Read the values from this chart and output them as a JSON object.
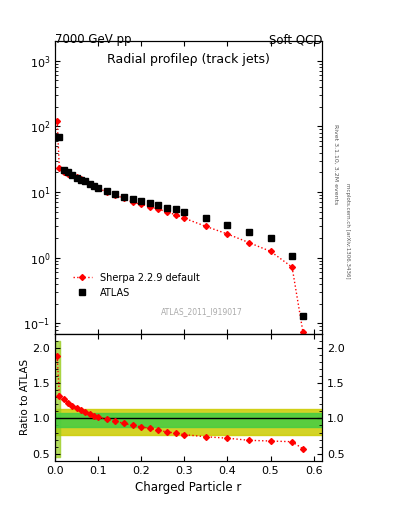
{
  "title_left": "7000 GeV pp",
  "title_right": "Soft QCD",
  "main_title": "Radial profileρ (track jets)",
  "watermark": "ATLAS_2011_I919017",
  "right_label_top": "Rivet 3.1.10, 3.2M events",
  "right_label_bottom": "mcplots.cern.ch [arXiv:1306.3436]",
  "xlabel": "Charged Particle r",
  "ylabel_ratio": "Ratio to ATLAS",
  "atlas_x": [
    0.01,
    0.02,
    0.03,
    0.04,
    0.05,
    0.06,
    0.07,
    0.08,
    0.09,
    0.1,
    0.12,
    0.14,
    0.16,
    0.18,
    0.2,
    0.22,
    0.24,
    0.26,
    0.28,
    0.3,
    0.35,
    0.4,
    0.45,
    0.5,
    0.55,
    0.575
  ],
  "atlas_y": [
    70,
    22,
    20,
    18,
    16.5,
    15.5,
    14.5,
    13.5,
    12.5,
    11.5,
    10.5,
    9.5,
    8.5,
    7.8,
    7.2,
    6.8,
    6.3,
    5.8,
    5.5,
    5.0,
    4.0,
    3.1,
    2.5,
    2.0,
    1.05,
    0.13
  ],
  "sherpa_x": [
    0.005,
    0.01,
    0.02,
    0.03,
    0.04,
    0.05,
    0.06,
    0.07,
    0.08,
    0.09,
    0.1,
    0.12,
    0.14,
    0.16,
    0.18,
    0.2,
    0.22,
    0.24,
    0.26,
    0.28,
    0.3,
    0.35,
    0.4,
    0.45,
    0.5,
    0.55,
    0.575
  ],
  "sherpa_y": [
    120,
    23,
    20,
    19,
    18,
    17,
    16,
    15,
    13.5,
    12.5,
    11.5,
    10,
    9,
    8,
    7,
    6.5,
    6,
    5.5,
    5,
    4.5,
    4,
    3.0,
    2.3,
    1.7,
    1.25,
    0.72,
    0.075
  ],
  "ratio_x": [
    0.005,
    0.01,
    0.02,
    0.03,
    0.04,
    0.05,
    0.06,
    0.07,
    0.08,
    0.09,
    0.1,
    0.12,
    0.14,
    0.16,
    0.18,
    0.2,
    0.22,
    0.24,
    0.26,
    0.28,
    0.3,
    0.35,
    0.4,
    0.45,
    0.5,
    0.55,
    0.575
  ],
  "ratio_y": [
    1.88,
    1.32,
    1.27,
    1.22,
    1.18,
    1.15,
    1.12,
    1.09,
    1.06,
    1.04,
    1.02,
    0.99,
    0.96,
    0.93,
    0.9,
    0.88,
    0.86,
    0.83,
    0.81,
    0.79,
    0.77,
    0.74,
    0.72,
    0.69,
    0.68,
    0.67,
    0.57
  ],
  "ylim_main": [
    0.07,
    2000
  ],
  "ylim_ratio": [
    0.4,
    2.2
  ],
  "xlim": [
    0.0,
    0.62
  ],
  "atlas_color": "black",
  "sherpa_color": "red",
  "green_color": "#44cc44",
  "yellow_color": "#cccc00",
  "legend_atlas": "ATLAS",
  "legend_sherpa": "Sherpa 2.2.9 default"
}
